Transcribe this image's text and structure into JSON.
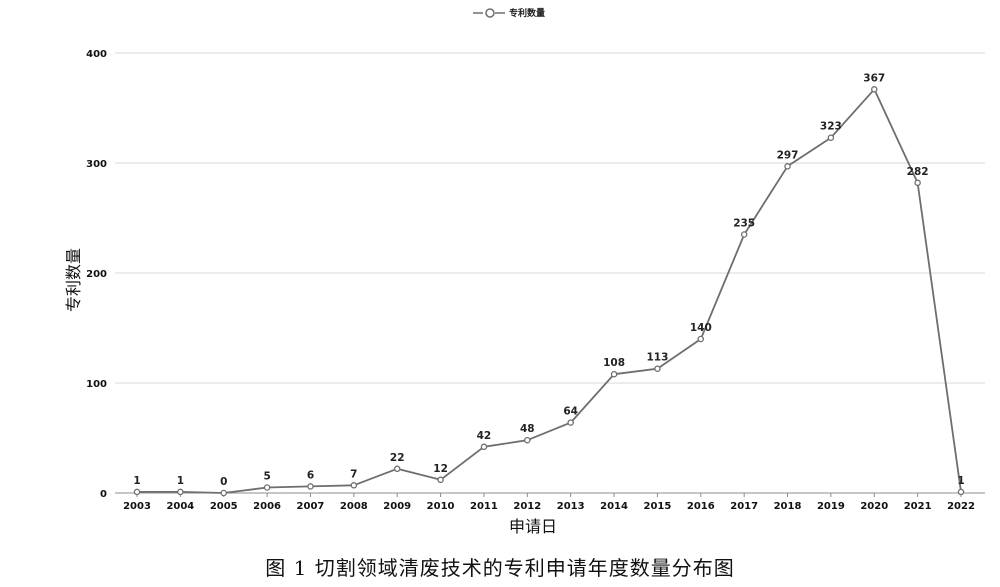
{
  "caption": "图 1  切割领域清废技术的专利申请年度数量分布图",
  "chart_data": {
    "type": "line",
    "title": "",
    "xlabel": "申请日",
    "ylabel": "专利数量",
    "categories": [
      "2003",
      "2004",
      "2005",
      "2006",
      "2007",
      "2008",
      "2009",
      "2010",
      "2011",
      "2012",
      "2013",
      "2014",
      "2015",
      "2016",
      "2017",
      "2018",
      "2019",
      "2020",
      "2021",
      "2022"
    ],
    "series": [
      {
        "name": "专利数量",
        "values": [
          1,
          1,
          0,
          5,
          6,
          7,
          22,
          12,
          42,
          48,
          64,
          108,
          113,
          140,
          235,
          297,
          323,
          367,
          282,
          1
        ]
      }
    ],
    "ylim": [
      0,
      400
    ],
    "yticks": [
      0,
      100,
      200,
      300,
      400
    ],
    "grid": true,
    "legend": "top-center",
    "colors": {
      "line": "#6e6e6e",
      "marker_fill": "#ffffff",
      "grid": "#d9d9d9",
      "axis": "#8c8c8c"
    }
  }
}
